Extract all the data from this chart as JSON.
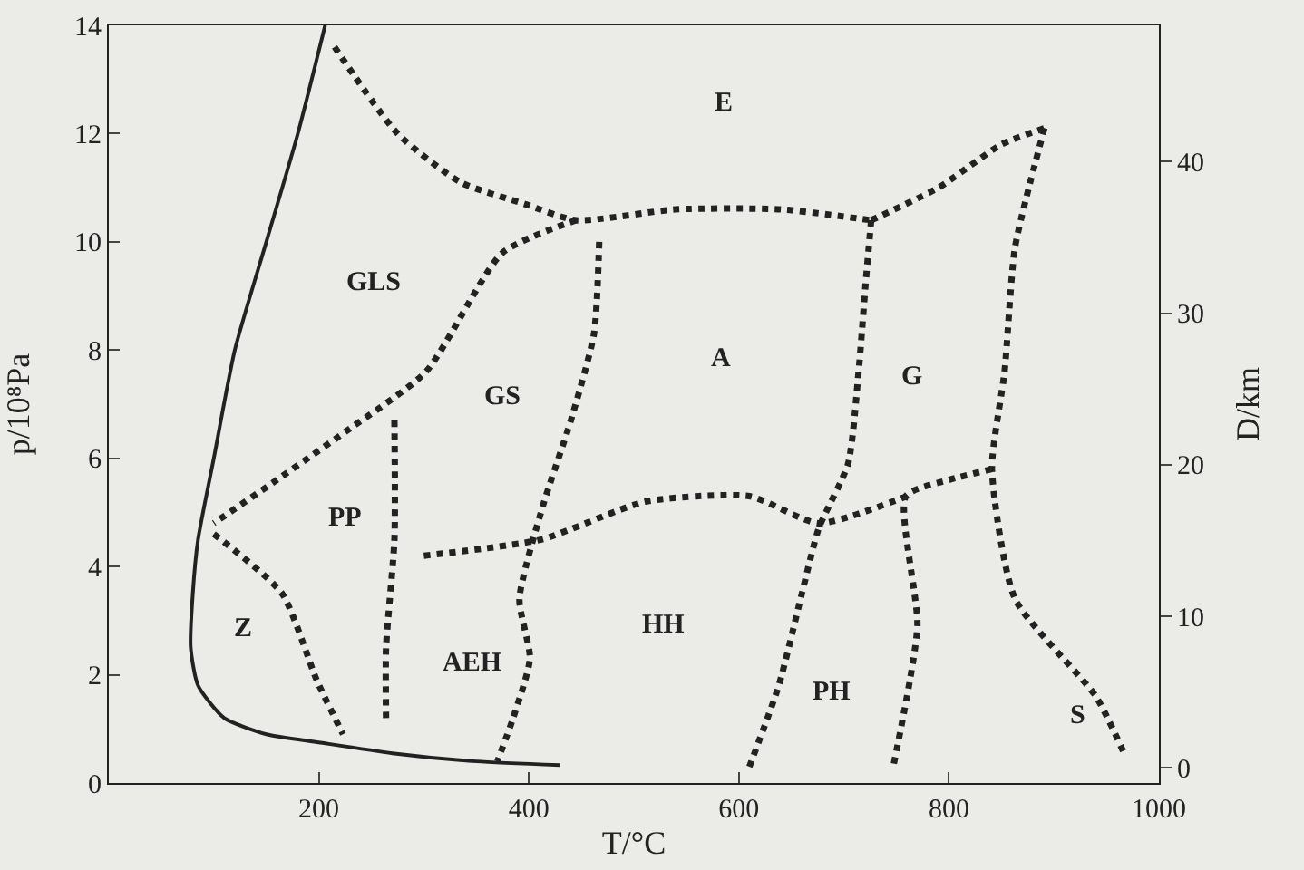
{
  "chart_data": {
    "type": "line",
    "xlabel": "T/°C",
    "ylabel": "p/10⁸Pa",
    "y2label": "D/km",
    "xlim": [
      0,
      1000
    ],
    "xticks": [
      200,
      400,
      600,
      800,
      1000
    ],
    "ylim": [
      0,
      14
    ],
    "yticks": [
      0,
      2,
      4,
      6,
      8,
      10,
      12,
      14
    ],
    "y2lim": [
      -1,
      49
    ],
    "y2ticks": [
      0,
      10,
      20,
      30,
      40
    ],
    "grid": false,
    "marker": "none",
    "series": [
      {
        "color": "#222222",
        "line_style": "solid",
        "x": [
          206,
          180,
          150,
          120,
          100,
          85,
          80,
          78,
          85,
          110,
          150,
          200,
          270,
          350,
          430
        ],
        "values": [
          14,
          12,
          10,
          8,
          6,
          4.5,
          3.5,
          2.5,
          1.8,
          1.2,
          0.9,
          0.75,
          0.55,
          0.4,
          0.33
        ]
      },
      {
        "color": "#222222",
        "line_style": "dotted",
        "x": [
          215,
          275,
          335,
          396,
          445,
          540,
          640,
          726
        ],
        "values": [
          13.6,
          12,
          11.1,
          10.7,
          10.4,
          10.6,
          10.6,
          10.4
        ]
      },
      {
        "color": "#222222",
        "line_style": "dotted",
        "x": [
          726,
          790,
          850,
          891
        ],
        "values": [
          10.4,
          11,
          11.8,
          12.1
        ]
      },
      {
        "color": "#222222",
        "line_style": "dotted",
        "x": [
          445,
          375,
          302,
          226,
          160,
          100
        ],
        "values": [
          10.4,
          9.8,
          7.6,
          6.5,
          5.6,
          4.8
        ]
      },
      {
        "color": "#222222",
        "line_style": "dotted",
        "x": [
          467,
          462,
          440,
          413,
          391,
          401,
          385,
          370
        ],
        "values": [
          10,
          8.3,
          6.7,
          5.1,
          3.4,
          2.3,
          1.2,
          0.4
        ]
      },
      {
        "color": "#222222",
        "line_style": "dotted",
        "x": [
          100,
          165,
          198,
          223
        ],
        "values": [
          4.6,
          3.5,
          1.9,
          0.9
        ]
      },
      {
        "color": "#222222",
        "line_style": "dotted",
        "x": [
          272,
          272,
          264,
          264
        ],
        "values": [
          6.7,
          4.5,
          2.5,
          1.2
        ]
      },
      {
        "color": "#222222",
        "line_style": "dotted",
        "x": [
          300,
          412,
          511,
          610,
          676,
          760
        ],
        "values": [
          4.2,
          4.5,
          5.2,
          5.3,
          4.8,
          5.3
        ]
      },
      {
        "color": "#222222",
        "line_style": "dotted",
        "x": [
          726,
          721,
          714,
          704,
          676,
          660,
          638,
          610
        ],
        "values": [
          10.4,
          9.3,
          7.6,
          5.9,
          4.7,
          3.5,
          1.8,
          0.3
        ]
      },
      {
        "color": "#222222",
        "line_style": "dotted",
        "x": [
          891,
          863,
          853,
          841,
          863,
          940,
          968
        ],
        "values": [
          12.1,
          9.9,
          7.6,
          5.8,
          3.4,
          1.6,
          0.5
        ]
      },
      {
        "color": "#222222",
        "line_style": "dotted",
        "x": [
          841,
          800,
          759,
          770,
          747
        ],
        "values": [
          5.8,
          5.6,
          5.3,
          2.9,
          0.3
        ]
      }
    ],
    "annotations": [
      "E",
      "GLS",
      "GS",
      "A",
      "G",
      "PP",
      "Z",
      "AEH",
      "HH",
      "PH",
      "S"
    ]
  }
}
